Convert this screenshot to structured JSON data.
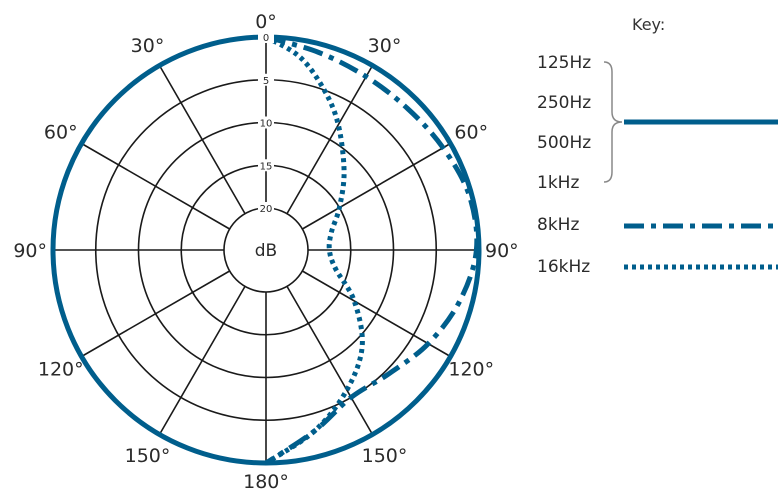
{
  "chart_data": {
    "type": "polar",
    "unit_label": "dB",
    "ring_values": [
      0,
      5,
      10,
      15,
      20
    ],
    "ring_labels": [
      "0",
      "5",
      "10",
      "15",
      "20"
    ],
    "angle_ticks": [
      0,
      30,
      60,
      90,
      120,
      150,
      180,
      210,
      240,
      270,
      300,
      330
    ],
    "angle_labels": [
      "0°",
      "30°",
      "60°",
      "90°",
      "120°",
      "150°",
      "180°",
      "150°",
      "120°",
      "90°",
      "60°",
      "30°"
    ],
    "key_title": "Key:",
    "key_entries": [
      {
        "label": "125Hz",
        "series": "low"
      },
      {
        "label": "250Hz",
        "series": "low"
      },
      {
        "label": "500Hz",
        "series": "low"
      },
      {
        "label": "1kHz",
        "series": "low"
      },
      {
        "label": "8kHz",
        "series": "8k"
      },
      {
        "label": "16kHz",
        "series": "16k"
      }
    ],
    "series": [
      {
        "id": "low",
        "style": "solid",
        "color": "#005e8c",
        "points": [
          [
            0,
            0
          ],
          [
            30,
            0
          ],
          [
            60,
            0
          ],
          [
            90,
            0
          ],
          [
            120,
            0
          ],
          [
            150,
            0
          ],
          [
            180,
            0
          ],
          [
            210,
            0
          ],
          [
            240,
            0
          ],
          [
            270,
            0
          ],
          [
            300,
            0
          ],
          [
            330,
            0
          ],
          [
            360,
            0
          ]
        ]
      },
      {
        "id": "8k",
        "style": "dashdot",
        "color": "#005e8c",
        "points": [
          [
            0,
            0
          ],
          [
            15,
            1
          ],
          [
            30,
            1.5
          ],
          [
            45,
            1.5
          ],
          [
            60,
            1
          ],
          [
            75,
            0.3
          ],
          [
            90,
            0.3
          ],
          [
            105,
            1.5
          ],
          [
            120,
            3
          ],
          [
            135,
            4.5
          ],
          [
            150,
            5
          ],
          [
            165,
            3
          ],
          [
            180,
            0
          ]
        ]
      },
      {
        "id": "16k",
        "style": "dotted",
        "color": "#005e8c",
        "points": [
          [
            0,
            0
          ],
          [
            10,
            2
          ],
          [
            20,
            5
          ],
          [
            30,
            8
          ],
          [
            45,
            12
          ],
          [
            60,
            15
          ],
          [
            75,
            17
          ],
          [
            90,
            17.5
          ],
          [
            105,
            16.5
          ],
          [
            120,
            13
          ],
          [
            135,
            9
          ],
          [
            150,
            6
          ],
          [
            165,
            3
          ],
          [
            180,
            0
          ]
        ]
      }
    ]
  }
}
